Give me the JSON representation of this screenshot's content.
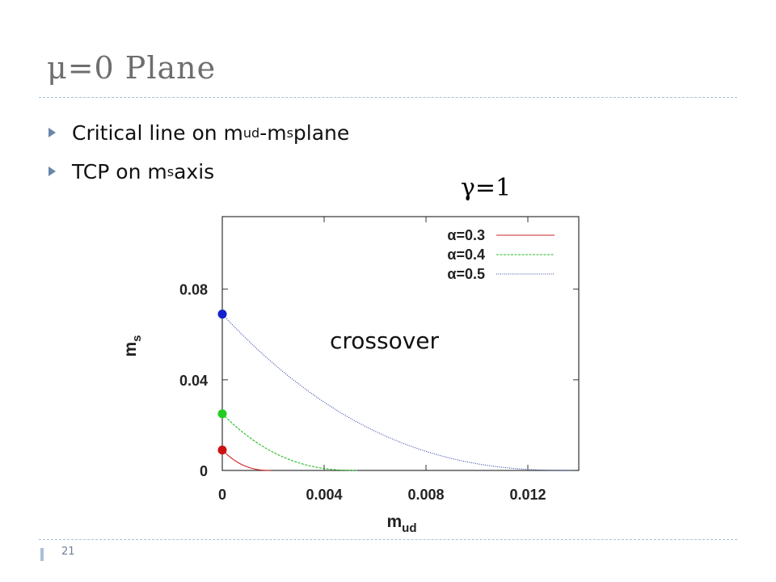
{
  "slide": {
    "title": "μ=0 Plane",
    "page_number": "21",
    "bullets": [
      {
        "pre": "Critical line on m",
        "sub1": "ud",
        "mid": "-m",
        "sub2": "s",
        "post": " plane"
      },
      {
        "pre": "TCP on m",
        "sub1": "s",
        "mid": " axis",
        "sub2": "",
        "post": ""
      }
    ],
    "gamma_label": "γ=1",
    "bullet_icon": "triangle-bullet-icon"
  },
  "chart_data": {
    "type": "line",
    "x_label_main": "m",
    "x_label_sub": "ud",
    "y_label_main": "m",
    "y_label_sub": "s",
    "xlim": [
      0,
      0.014
    ],
    "ylim": [
      0,
      0.112
    ],
    "x_ticks": [
      0,
      0.004,
      0.008,
      0.012
    ],
    "x_tick_labels": [
      "0",
      "0.004",
      "0.008",
      "0.012"
    ],
    "y_ticks": [
      0,
      0.04,
      0.08
    ],
    "y_tick_labels": [
      "0",
      "0.04",
      "0.08"
    ],
    "grid": false,
    "legend_position": "top-right",
    "annotation": "crossover",
    "series": [
      {
        "name": "α=0.3",
        "color": "#cc2222",
        "style": "solid",
        "tcp": 0.009,
        "end_x": 0.0019
      },
      {
        "name": "α=0.4",
        "color": "#22bb22",
        "style": "dashed",
        "tcp": 0.025,
        "end_x": 0.0053
      },
      {
        "name": "α=0.5",
        "color": "#3344aa",
        "style": "dotted",
        "tcp": 0.069,
        "end_x": 0.0137
      }
    ],
    "tcp_points": [
      {
        "x": 0,
        "y": 0.009,
        "color": "#cc1111"
      },
      {
        "x": 0,
        "y": 0.025,
        "color": "#22cc22"
      },
      {
        "x": 0,
        "y": 0.069,
        "color": "#1122cc"
      }
    ]
  }
}
